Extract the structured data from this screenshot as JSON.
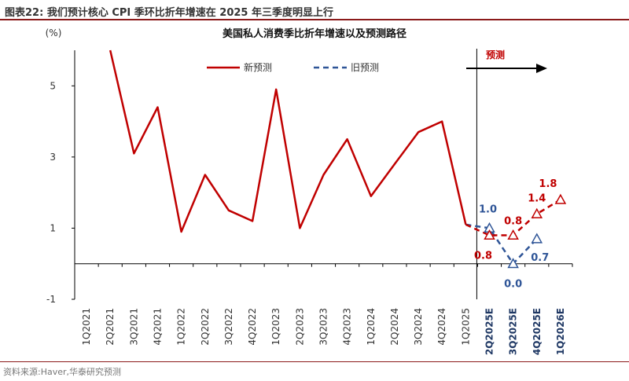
{
  "figure": {
    "title": "图表22:   我们预计核心 CPI 季环比折年增速在 2025 年三季度明显上行",
    "source": "资料来源:Haver,华泰研究预测"
  },
  "chart_data": {
    "type": "line",
    "title": "美国私人消费季比折年增速以及预测路径",
    "ylabel": "(%)",
    "ylim": [
      -1,
      6
    ],
    "yticks": [
      -1,
      1,
      3,
      5
    ],
    "categories": [
      "1Q2021",
      "2Q2021",
      "3Q2021",
      "4Q2021",
      "1Q2022",
      "2Q2022",
      "3Q2022",
      "4Q2022",
      "1Q2023",
      "2Q2023",
      "3Q2023",
      "4Q2023",
      "1Q2024",
      "2Q2024",
      "3Q2024",
      "4Q2024",
      "1Q2025",
      "2Q2025E",
      "3Q2025E",
      "4Q2025E",
      "1Q2026E"
    ],
    "forecast_label": "预测",
    "forecast_start": "1Q2025",
    "legend": {
      "position": "top",
      "entries": [
        "新预测",
        "旧预测"
      ]
    },
    "series": [
      {
        "name": "新预测",
        "color": "#c00000",
        "actual": [
          null,
          6.3,
          3.1,
          4.4,
          0.9,
          2.5,
          1.5,
          1.2,
          4.9,
          1.0,
          2.5,
          3.5,
          1.9,
          2.8,
          3.7,
          4.0,
          1.1,
          null,
          null,
          null,
          null
        ],
        "forecast": [
          null,
          null,
          null,
          null,
          null,
          null,
          null,
          null,
          null,
          null,
          null,
          null,
          null,
          null,
          null,
          null,
          1.1,
          0.8,
          0.8,
          1.4,
          1.8
        ],
        "labels": {
          "2Q2025E": "0.8",
          "3Q2025E": "0.8",
          "4Q2025E": "1.4",
          "1Q2026E": "1.8"
        }
      },
      {
        "name": "旧预测",
        "color": "#2f5597",
        "forecast": [
          null,
          null,
          null,
          null,
          null,
          null,
          null,
          null,
          null,
          null,
          null,
          null,
          null,
          null,
          null,
          null,
          1.1,
          1.0,
          0.0,
          0.7,
          null
        ],
        "labels": {
          "2Q2025E": "1.0",
          "3Q2025E": "0.0",
          "4Q2025E": "0.7"
        }
      }
    ]
  }
}
